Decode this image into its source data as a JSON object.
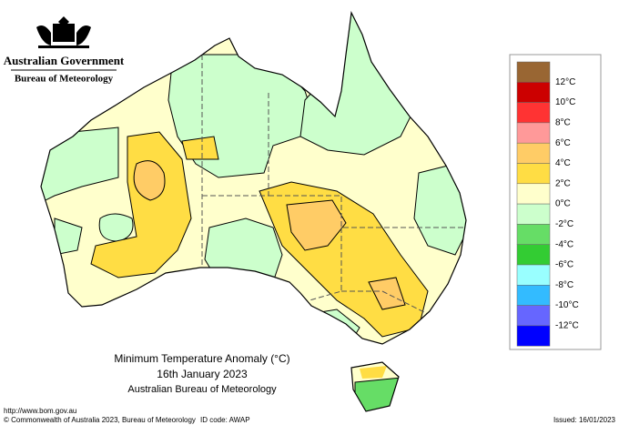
{
  "header": {
    "government": "Australian Government",
    "agency": "Bureau of Meteorology"
  },
  "map": {
    "title": "Minimum Temperature Anomaly (°C)",
    "date": "16th January 2023",
    "source": "Australian Bureau of Meteorology"
  },
  "legend": {
    "colors": [
      "#996633",
      "#cc0000",
      "#ff3333",
      "#ff9999",
      "#ffcc66",
      "#ffdd44",
      "#ffffcc",
      "#ccffcc",
      "#66dd66",
      "#33cc33",
      "#99ffff",
      "#33bbff",
      "#6666ff",
      "#0000ff"
    ],
    "labels": [
      "12°C",
      "10°C",
      "8°C",
      "6°C",
      "4°C",
      "2°C",
      "0°C",
      "-2°C",
      "-4°C",
      "-6°C",
      "-8°C",
      "-10°C",
      "-12°C"
    ]
  },
  "footer": {
    "url": "http://www.bom.gov.au",
    "copyright": "© Commonwealth of Australia 2023, Bureau of Meteorology",
    "id_code": "ID code: AWAP",
    "issued": "Issued: 16/01/2023"
  }
}
